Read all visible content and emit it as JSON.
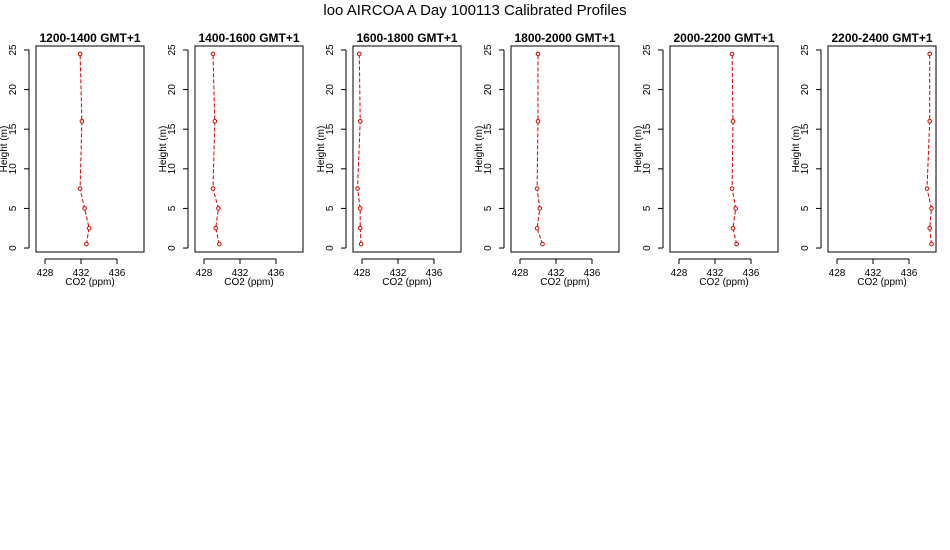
{
  "page_title": "loo AIRCOA A  Day 100113  Calibrated Profiles",
  "chart_data": [
    {
      "type": "line",
      "title": "1200-1400 GMT+1",
      "xlabel": "CO2 (ppm)",
      "ylabel": "Height (m)",
      "xlim": [
        427,
        439
      ],
      "ylim": [
        -0.5,
        25.5
      ],
      "xticks": [
        428,
        432,
        436
      ],
      "yticks": [
        0,
        5,
        10,
        15,
        20,
        25
      ],
      "series": [
        {
          "points": [
            [
              432.6,
              0.5
            ],
            [
              432.9,
              2.5
            ],
            [
              432.4,
              5.0
            ],
            [
              431.9,
              7.5
            ],
            [
              432.1,
              16.0
            ],
            [
              431.9,
              24.5
            ]
          ]
        }
      ]
    },
    {
      "type": "line",
      "title": "1400-1600 GMT+1",
      "xlabel": "CO2 (ppm)",
      "ylabel": "Height (m)",
      "xlim": [
        427,
        439
      ],
      "ylim": [
        -0.5,
        25.5
      ],
      "xticks": [
        428,
        432,
        436
      ],
      "yticks": [
        0,
        5,
        10,
        15,
        20,
        25
      ],
      "series": [
        {
          "points": [
            [
              429.7,
              0.5
            ],
            [
              429.3,
              2.5
            ],
            [
              429.6,
              5.0
            ],
            [
              429.0,
              7.5
            ],
            [
              429.2,
              16.0
            ],
            [
              429.0,
              24.5
            ]
          ]
        }
      ]
    },
    {
      "type": "line",
      "title": "1600-1800 GMT+1",
      "xlabel": "CO2 (ppm)",
      "ylabel": "Height (m)",
      "xlim": [
        427,
        439
      ],
      "ylim": [
        -0.5,
        25.5
      ],
      "xticks": [
        428,
        432,
        436
      ],
      "yticks": [
        0,
        5,
        10,
        15,
        20,
        25
      ],
      "series": [
        {
          "points": [
            [
              427.9,
              0.5
            ],
            [
              427.8,
              2.5
            ],
            [
              427.8,
              5.0
            ],
            [
              427.5,
              7.5
            ],
            [
              427.8,
              16.0
            ],
            [
              427.7,
              24.5
            ]
          ]
        }
      ]
    },
    {
      "type": "line",
      "title": "1800-2000 GMT+1",
      "xlabel": "CO2 (ppm)",
      "ylabel": "Height (m)",
      "xlim": [
        427,
        439
      ],
      "ylim": [
        -0.5,
        25.5
      ],
      "xticks": [
        428,
        432,
        436
      ],
      "yticks": [
        0,
        5,
        10,
        15,
        20,
        25
      ],
      "series": [
        {
          "points": [
            [
              430.5,
              0.5
            ],
            [
              429.9,
              2.5
            ],
            [
              430.2,
              5.0
            ],
            [
              429.9,
              7.5
            ],
            [
              430.0,
              16.0
            ],
            [
              430.0,
              24.5
            ]
          ]
        }
      ]
    },
    {
      "type": "line",
      "title": "2000-2200 GMT+1",
      "xlabel": "CO2 (ppm)",
      "ylabel": "Height (m)",
      "xlim": [
        427,
        439
      ],
      "ylim": [
        -0.5,
        25.5
      ],
      "xticks": [
        428,
        432,
        436
      ],
      "yticks": [
        0,
        5,
        10,
        15,
        20,
        25
      ],
      "series": [
        {
          "points": [
            [
              434.4,
              0.5
            ],
            [
              434.0,
              2.5
            ],
            [
              434.3,
              5.0
            ],
            [
              433.9,
              7.5
            ],
            [
              434.0,
              16.0
            ],
            [
              433.9,
              24.5
            ]
          ]
        }
      ]
    },
    {
      "type": "line",
      "title": "2200-2400 GMT+1",
      "xlabel": "CO2 (ppm)",
      "ylabel": "Height (m)",
      "xlim": [
        427,
        439
      ],
      "ylim": [
        -0.5,
        25.5
      ],
      "xticks": [
        428,
        432,
        436
      ],
      "yticks": [
        0,
        5,
        10,
        15,
        20,
        25
      ],
      "series": [
        {
          "points": [
            [
              438.5,
              0.5
            ],
            [
              438.3,
              2.5
            ],
            [
              438.5,
              5.0
            ],
            [
              438.0,
              7.5
            ],
            [
              438.3,
              16.0
            ],
            [
              438.3,
              24.5
            ]
          ]
        }
      ]
    }
  ],
  "colors": {
    "profile_line": "#d40000",
    "axes": "#000000",
    "background": "#ffffff"
  }
}
